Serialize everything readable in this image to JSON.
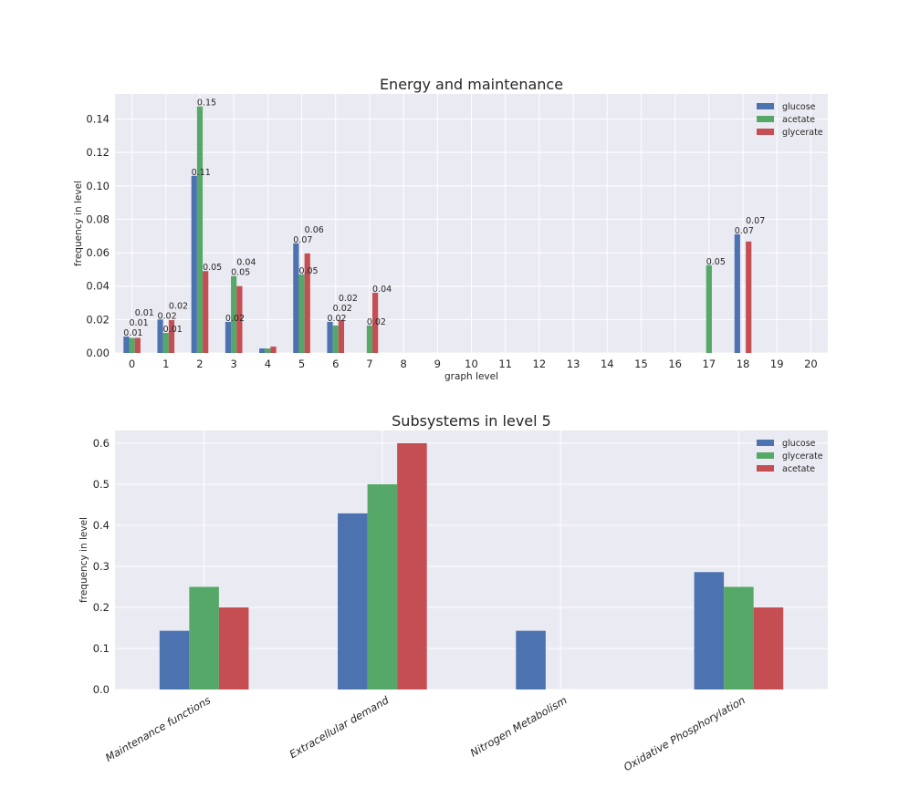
{
  "colors": {
    "plot_background": "#EAEAF2",
    "grid": "#FFFFFF"
  },
  "chart_data": [
    {
      "type": "bar",
      "title": "Energy and maintenance",
      "xlabel": "graph level",
      "ylabel": "frequency in level",
      "categories": [
        "0",
        "1",
        "2",
        "3",
        "4",
        "5",
        "6",
        "7",
        "8",
        "9",
        "10",
        "11",
        "12",
        "13",
        "14",
        "15",
        "16",
        "17",
        "18",
        "19",
        "20"
      ],
      "ylim": [
        0,
        0.155
      ],
      "yticks": [
        "0.00",
        "0.02",
        "0.04",
        "0.06",
        "0.08",
        "0.10",
        "0.12",
        "0.14"
      ],
      "grid": true,
      "legend": "top-right",
      "data_labels": true,
      "series": [
        {
          "name": "glucose",
          "color": "#4C72B0",
          "values": [
            0.0098,
            0.02,
            0.106,
            0.0186,
            0.0027,
            0.0656,
            0.0186,
            0,
            0,
            0,
            0,
            0,
            0,
            0,
            0,
            0,
            0,
            0,
            0.071,
            0,
            0
          ]
        },
        {
          "name": "acetate",
          "color": "#55A868",
          "values": [
            0.009,
            0.012,
            0.1475,
            0.046,
            0.0027,
            0.047,
            0.0164,
            0.0164,
            0,
            0,
            0,
            0,
            0,
            0,
            0,
            0,
            0,
            0.0525,
            0,
            0,
            0
          ]
        },
        {
          "name": "glycerate",
          "color": "#C44E52",
          "values": [
            0.009,
            0.0197,
            0.049,
            0.04,
            0.0038,
            0.0596,
            0.0197,
            0.036,
            0,
            0,
            0,
            0,
            0,
            0,
            0,
            0,
            0,
            0,
            0.0667,
            0,
            0
          ]
        }
      ]
    },
    {
      "type": "bar",
      "title": "Subsystems in level 5",
      "xlabel": "",
      "ylabel": "frequency in level",
      "categories": [
        "Maintenance functions",
        "Extracellular demand",
        "Nitrogen Metabolism",
        "Oxidative Phosphorylation"
      ],
      "ylim": [
        0,
        0.631
      ],
      "yticks": [
        "0.0",
        "0.1",
        "0.2",
        "0.3",
        "0.4",
        "0.5",
        "0.6"
      ],
      "grid": true,
      "legend": "top-right",
      "data_labels": false,
      "series": [
        {
          "name": "glucose",
          "color": "#4C72B0",
          "values": [
            0.143,
            0.429,
            0.143,
            0.286
          ]
        },
        {
          "name": "glycerate",
          "color": "#55A868",
          "values": [
            0.25,
            0.5,
            0,
            0.25
          ]
        },
        {
          "name": "acetate",
          "color": "#C44E52",
          "values": [
            0.2,
            0.6,
            0,
            0.2
          ]
        }
      ]
    }
  ]
}
